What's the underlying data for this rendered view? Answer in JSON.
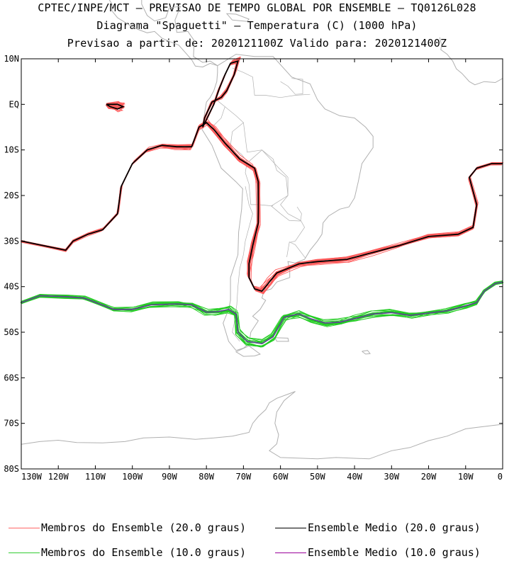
{
  "header": {
    "line1": "CPTEC/INPE/MCT – PREVISAO DE TEMPO GLOBAL POR ENSEMBLE – TQ0126L028",
    "line2": "Diagrama \"Spaguetti\" – Temperatura (C) (1000 hPa)",
    "line3": "Previsao a partir de: 2020121100Z  Valido para: 2020121400Z"
  },
  "axes": {
    "lat_labels": [
      "10N",
      "EQ",
      "10S",
      "20S",
      "30S",
      "40S",
      "50S",
      "60S",
      "70S",
      "80S"
    ],
    "lon_labels": [
      "130W",
      "120W",
      "110W",
      "100W",
      "90W",
      "80W",
      "70W",
      "60W",
      "50W",
      "40W",
      "30W",
      "20W",
      "10W",
      "0"
    ]
  },
  "legend": [
    {
      "label": "Membros do Ensemble (20.0 graus)",
      "color": "#ff6666"
    },
    {
      "label": "Ensemble Medio (20.0 graus)",
      "color": "#000000"
    },
    {
      "label": "Membros do Ensemble (10.0 graus)",
      "color": "#33cc33"
    },
    {
      "label": "Ensemble Medio (10.0 graus)",
      "color": "#990099"
    }
  ],
  "colors": {
    "coast": "#b0b0b0",
    "member20": "#ff5a5a",
    "mean20": "#000000",
    "member10": "#22cc22",
    "mean10": "#5a4a8a"
  },
  "chart_data": {
    "type": "map",
    "region": {
      "lon": [
        -130,
        0
      ],
      "lat": [
        -80,
        10
      ]
    },
    "ensemble_members": 15,
    "isotherms": [
      {
        "name": "20.0 graus",
        "segments": [
          [
            [
              -130,
              -30
            ],
            [
              -118,
              -32
            ],
            [
              -116,
              -30
            ],
            [
              -112,
              -28.5
            ],
            [
              -108,
              -27.5
            ],
            [
              -104,
              -24
            ],
            [
              -103,
              -18
            ],
            [
              -100,
              -13
            ],
            [
              -96,
              -10
            ],
            [
              -92,
              -9
            ],
            [
              -88,
              -9.3
            ],
            [
              -84,
              -9.3
            ],
            [
              -82,
              -5
            ],
            [
              -80,
              -4
            ],
            [
              -78,
              -5.5
            ],
            [
              -75,
              -8.5
            ],
            [
              -71,
              -12
            ],
            [
              -67,
              -14
            ],
            [
              -66,
              -17
            ],
            [
              -66,
              -26
            ],
            [
              -67.5,
              -31
            ],
            [
              -68.5,
              -35
            ],
            [
              -68.5,
              -38
            ],
            [
              -67,
              -40.5
            ],
            [
              -65,
              -41
            ],
            [
              -63,
              -39
            ],
            [
              -61,
              -37
            ],
            [
              -55,
              -35
            ],
            [
              -50,
              -34.5
            ],
            [
              -42,
              -34
            ],
            [
              -35,
              -32.5
            ],
            [
              -28,
              -31
            ],
            [
              -20,
              -29
            ],
            [
              -12,
              -28.5
            ],
            [
              -8,
              -27
            ],
            [
              -7,
              -22
            ],
            [
              -9,
              -16
            ],
            [
              -7,
              -14
            ],
            [
              -3,
              -13
            ],
            [
              0,
              -13
            ]
          ],
          [
            [
              -81,
              -5
            ],
            [
              -80.5,
              -3
            ],
            [
              -78.5,
              0.5
            ],
            [
              -76,
              1.5
            ],
            [
              -74.5,
              3
            ],
            [
              -72.5,
              6.5
            ],
            [
              -71.5,
              9.5
            ],
            [
              -73.5,
              9
            ],
            [
              -75,
              6.5
            ],
            [
              -76.5,
              3.5
            ],
            [
              -78,
              0
            ],
            [
              -79.5,
              -2.5
            ],
            [
              -81,
              -5
            ]
          ],
          [
            [
              -107,
              0
            ],
            [
              -106,
              -0.5
            ],
            [
              -104,
              -1
            ],
            [
              -102.5,
              -0.5
            ],
            [
              -104,
              0
            ],
            [
              -107,
              0
            ]
          ]
        ]
      },
      {
        "name": "10.0 graus",
        "segments": [
          [
            [
              -130,
              -43.5
            ],
            [
              -125,
              -42
            ],
            [
              -118,
              -42.2
            ],
            [
              -113,
              -42.5
            ],
            [
              -105,
              -45
            ],
            [
              -100,
              -45
            ],
            [
              -95,
              -44
            ],
            [
              -88,
              -43.8
            ],
            [
              -84,
              -44
            ],
            [
              -80,
              -45.6
            ],
            [
              -77,
              -45.5
            ],
            [
              -74,
              -45
            ],
            [
              -72,
              -46
            ],
            [
              -71.5,
              -50
            ],
            [
              -69,
              -52
            ],
            [
              -65,
              -52.5
            ],
            [
              -62,
              -51
            ],
            [
              -59,
              -46.7
            ],
            [
              -55,
              -46
            ],
            [
              -52,
              -47
            ],
            [
              -48,
              -48
            ],
            [
              -44,
              -47.8
            ],
            [
              -40,
              -47
            ],
            [
              -35,
              -46
            ],
            [
              -30,
              -45.7
            ],
            [
              -25,
              -46.3
            ],
            [
              -20,
              -45.8
            ],
            [
              -15,
              -45.3
            ],
            [
              -10,
              -44.2
            ],
            [
              -7,
              -43.5
            ],
            [
              -5,
              -41
            ],
            [
              -2,
              -39.3
            ],
            [
              0,
              -39
            ]
          ]
        ]
      }
    ]
  }
}
